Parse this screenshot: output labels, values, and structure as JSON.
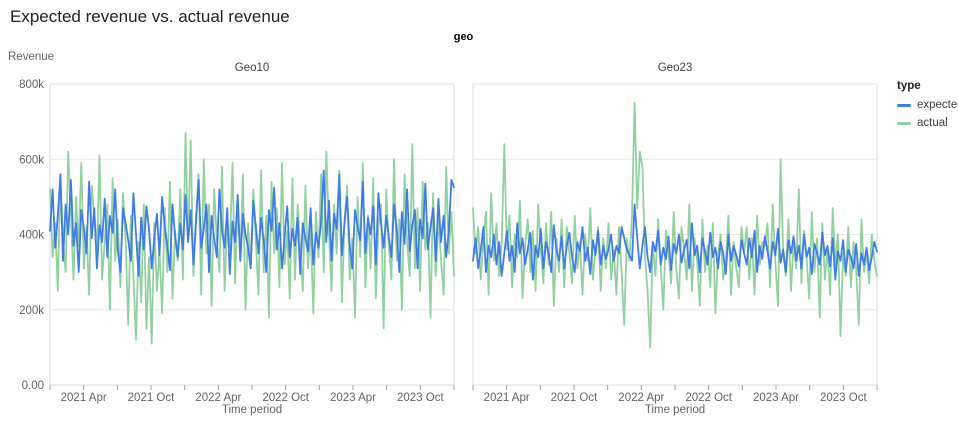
{
  "chart_data": {
    "type": "line",
    "title": "Expected revenue vs. actual revenue",
    "facet_field_label": "geo",
    "ylabel": "Revenue",
    "xlabel": "Time period",
    "values_unit": "thousands",
    "ylim_thousands": [
      0,
      800
    ],
    "y_tick_values": [
      0,
      200,
      400,
      600,
      800
    ],
    "y_tick_labels": [
      "0.00",
      "200k",
      "400k",
      "600k",
      "800k"
    ],
    "x_range_months": 36,
    "x_minor_tick_step_months": 3,
    "x_tick_label_months": [
      3,
      9,
      15,
      21,
      27,
      33
    ],
    "x_tick_labels": [
      "2021 Apr",
      "2021 Oct",
      "2022 Apr",
      "2022 Oct",
      "2023 Apr",
      "2023 Oct"
    ],
    "frequency": "weekly",
    "x_start": "2021 Jan",
    "x_end": "2023 Dec",
    "grid": true,
    "legend_position": "right",
    "legend": {
      "title": "type",
      "items": [
        {
          "label": "expected",
          "color": "#3f7de5"
        },
        {
          "label": "actual",
          "color": "#93d0a0"
        }
      ]
    },
    "panels": [
      {
        "title": "Geo10",
        "series": [
          {
            "name": "expected",
            "values": [
              410,
              520,
              365,
              450,
              560,
              330,
              480,
              400,
              545,
              370,
              430,
              300,
              465,
              415,
              350,
              540,
              390,
              470,
              310,
              425,
              380,
              495,
              340,
              450,
              405,
              520,
              360,
              300,
              470,
              430,
              385,
              330,
              510,
              400,
              290,
              445,
              360,
              475,
              415,
              310,
              390,
              455,
              345,
              500,
              420,
              370,
              305,
              480,
              395,
              340,
              430,
              360,
              505,
              380,
              465,
              320,
              430,
              545,
              365,
              415,
              480,
              300,
              450,
              390,
              340,
              520,
              410,
              365,
              470,
              295,
              435,
              380,
              505,
              330,
              455,
              400,
              365,
              310,
              490,
              420,
              350,
              445,
              385,
              300,
              465,
              410,
              525,
              360,
              430,
              310,
              395,
              475,
              340,
              415,
              370,
              445,
              295,
              430,
              390,
              355,
              470,
              320,
              405,
              365,
              435,
              570,
              380,
              490,
              330,
              455,
              415,
              560,
              345,
              430,
              500,
              370,
              310,
              465,
              420,
              385,
              540,
              350,
              445,
              400,
              475,
              320,
              510,
              430,
              365,
              450,
              395,
              340,
              480,
              415,
              300,
              460,
              375,
              520,
              355,
              425,
              465,
              310,
              440,
              390,
              535,
              360,
              420,
              470,
              330,
              495,
              380,
              450,
              340,
              410,
              545,
              525
            ]
          },
          {
            "name": "actual",
            "values": [
              520,
              340,
              430,
              250,
              560,
              390,
              300,
              620,
              450,
              280,
              500,
              370,
              590,
              310,
              420,
              240,
              530,
              450,
              350,
              610,
              280,
              380,
              480,
              200,
              550,
              330,
              440,
              260,
              510,
              390,
              160,
              450,
              290,
              120,
              380,
              220,
              480,
              150,
              340,
              110,
              430,
              250,
              360,
              190,
              470,
              300,
              540,
              230,
              410,
              330,
              520,
              280,
              670,
              380,
              650,
              290,
              450,
              560,
              240,
              600,
              350,
              480,
              210,
              520,
              390,
              300,
              580,
              250,
              440,
              360,
              590,
              270,
              490,
              330,
              560,
              200,
              430,
              310,
              520,
              380,
              240,
              570,
              300,
              450,
              180,
              540,
              350,
              470,
              260,
              590,
              320,
              410,
              230,
              550,
              280,
              480,
              360,
              250,
              530,
              310,
              420,
              190,
              460,
              340,
              560,
              300,
              620,
              410,
              250,
              480,
              350,
              570,
              220,
              440,
              530,
              280,
              390,
              180,
              500,
              340,
              590,
              260,
              450,
              310,
              550,
              230,
              420,
              480,
              150,
              520,
              370,
              280,
              600,
              330,
              440,
              200,
              560,
              380,
              290,
              640,
              310,
              470,
              250,
              540,
              360,
              430,
              180,
              510,
              290,
              450,
              330,
              240,
              580,
              350,
              460,
              290
            ]
          }
        ]
      },
      {
        "title": "Geo23",
        "series": [
          {
            "name": "expected",
            "values": [
              330,
              390,
              310,
              360,
              420,
              300,
              370,
              340,
              400,
              320,
              380,
              290,
              350,
              410,
              330,
              370,
              300,
              430,
              350,
              390,
              320,
              360,
              405,
              280,
              370,
              340,
              415,
              310,
              380,
              350,
              300,
              425,
              360,
              330,
              395,
              310,
              370,
              405,
              340,
              300,
              380,
              355,
              420,
              330,
              365,
              295,
              385,
              345,
              410,
              320,
              370,
              335,
              360,
              400,
              330,
              370,
              350,
              420,
              390,
              360,
              345,
              330,
              480,
              390,
              310,
              370,
              420,
              340,
              300,
              380,
              355,
              410,
              320,
              365,
              335,
              395,
              305,
              375,
              350,
              400,
              325,
              360,
              385,
              310,
              430,
              345,
              370,
              300,
              390,
              355,
              320,
              405,
              340,
              365,
              310,
              380,
              350,
              295,
              400,
              330,
              370,
              345,
              315,
              385,
              350,
              320,
              390,
              340,
              410,
              300,
              370,
              335,
              395,
              355,
              310,
              380,
              345,
              415,
              325,
              360,
              300,
              385,
              350,
              395,
              330,
              370,
              310,
              400,
              340,
              365,
              295,
              375,
              350,
              320,
              405,
              345,
              370,
              315,
              390,
              280,
              355,
              330,
              385,
              300,
              360,
              340,
              310,
              375,
              290,
              350,
              320,
              365,
              305,
              340,
              380,
              355
            ]
          },
          {
            "name": "actual",
            "values": [
              470,
              350,
              420,
              280,
              390,
              460,
              240,
              510,
              330,
              430,
              290,
              380,
              640,
              360,
              450,
              260,
              400,
              340,
              490,
              230,
              370,
              440,
              300,
              410,
              250,
              480,
              360,
              270,
              430,
              320,
              460,
              210,
              390,
              300,
              440,
              260,
              420,
              350,
              270,
              450,
              310,
              380,
              240,
              400,
              330,
              470,
              280,
              360,
              420,
              250,
              390,
              310,
              430,
              280,
              360,
              240,
              420,
              300,
              160,
              390,
              330,
              450,
              750,
              470,
              620,
              580,
              340,
              250,
              100,
              380,
              290,
              440,
              320,
              200,
              410,
              350,
              270,
              460,
              310,
              230,
              420,
              360,
              280,
              480,
              250,
              390,
              330,
              210,
              440,
              300,
              370,
              260,
              430,
              190,
              350,
              400,
              280,
              330,
              450,
              240,
              380,
              310,
              260,
              420,
              350,
              420,
              280,
              390,
              240,
              450,
              320,
              380,
              370,
              430,
              260,
              480,
              330,
              210,
              600,
              350,
              290,
              440,
              250,
              380,
              310,
              520,
              270,
              410,
              340,
              230,
              460,
              300,
              390,
              180,
              430,
              280,
              360,
              240,
              470,
              320,
              400,
              130,
              350,
              290,
              420,
              260,
              380,
              310,
              160,
              440,
              300,
              350,
              270,
              400,
              330,
              290
            ]
          }
        ]
      }
    ]
  }
}
